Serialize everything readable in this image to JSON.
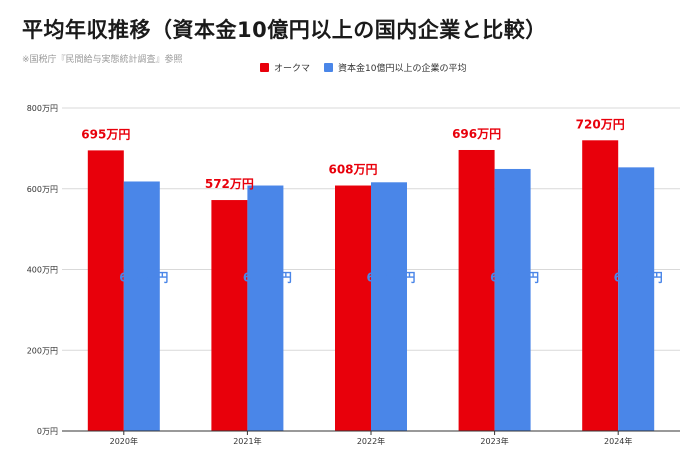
{
  "header": {
    "title": "平均年収推移（資本金10億円以上の国内企業と比較）",
    "source": "※国税庁『民間給与実態統計調査』参照"
  },
  "colors": {
    "series_a": "#e8000b",
    "series_b": "#4a86e8",
    "grid": "#d9d9d9",
    "axis": "#333333"
  },
  "chart_data": {
    "type": "bar",
    "categories": [
      "2020年",
      "2021年",
      "2022年",
      "2023年",
      "2024年"
    ],
    "series": [
      {
        "name": "オークマ",
        "values": [
          695,
          572,
          608,
          696,
          720
        ],
        "labels": [
          "695万円",
          "572万円",
          "608万円",
          "696万円",
          "720万円"
        ]
      },
      {
        "name": "資本金10億円以上の企業の平均",
        "values": [
          618,
          608,
          616,
          649,
          653
        ],
        "labels": [
          "618万円",
          "608万円",
          "616万円",
          "649万円",
          "653万円"
        ]
      }
    ],
    "ylim": [
      0,
      800
    ],
    "yticks": [
      0,
      200,
      400,
      600,
      800
    ],
    "ytick_labels": [
      "0万円",
      "200万円",
      "400万円",
      "600万円",
      "800万円"
    ],
    "grid": true,
    "legend_position": "top"
  }
}
